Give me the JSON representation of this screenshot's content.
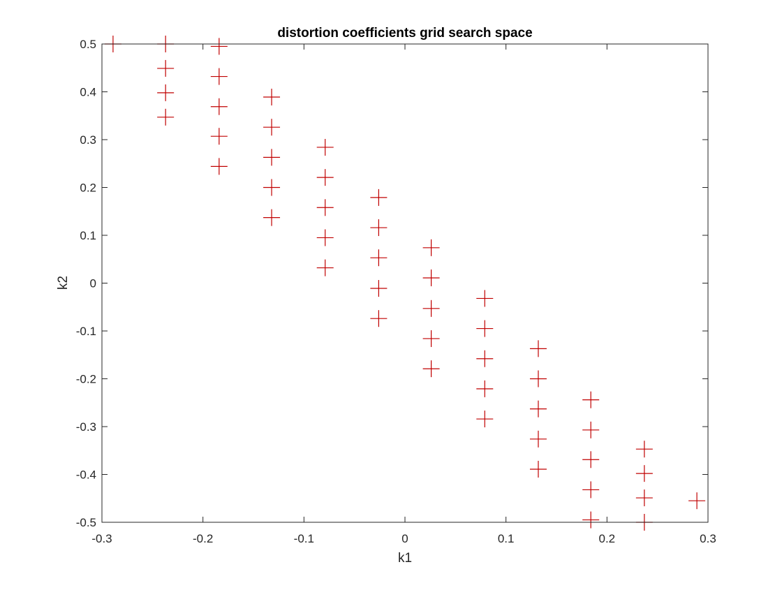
{
  "chart_data": {
    "type": "scatter",
    "title": "distortion coefficients grid search space",
    "xlabel": "k1",
    "ylabel": "k2",
    "xlim": [
      -0.3,
      0.3
    ],
    "ylim": [
      -0.5,
      0.5
    ],
    "xticks": [
      -0.3,
      -0.2,
      -0.1,
      0,
      0.1,
      0.2,
      0.3
    ],
    "xtick_labels": [
      "-0.3",
      "-0.2",
      "-0.1",
      "0",
      "0.1",
      "0.2",
      "0.3"
    ],
    "yticks": [
      -0.5,
      -0.4,
      -0.3,
      -0.2,
      -0.1,
      0,
      0.1,
      0.2,
      0.3,
      0.4,
      0.5
    ],
    "ytick_labels": [
      "-0.5",
      "-0.4",
      "-0.3",
      "-0.2",
      "-0.1",
      "0",
      "0.1",
      "0.2",
      "0.3",
      "0.4",
      "0.5"
    ],
    "grid": false,
    "marker": "plus",
    "marker_color": "#c00000",
    "axis_color": "#262626",
    "points": [
      {
        "x": -0.289,
        "y": 0.5
      },
      {
        "x": -0.237,
        "y": 0.5
      },
      {
        "x": -0.237,
        "y": 0.449
      },
      {
        "x": -0.237,
        "y": 0.398
      },
      {
        "x": -0.237,
        "y": 0.347
      },
      {
        "x": -0.184,
        "y": 0.495
      },
      {
        "x": -0.184,
        "y": 0.432
      },
      {
        "x": -0.184,
        "y": 0.369
      },
      {
        "x": -0.184,
        "y": 0.307
      },
      {
        "x": -0.184,
        "y": 0.244
      },
      {
        "x": -0.132,
        "y": 0.389
      },
      {
        "x": -0.132,
        "y": 0.326
      },
      {
        "x": -0.132,
        "y": 0.263
      },
      {
        "x": -0.132,
        "y": 0.2
      },
      {
        "x": -0.132,
        "y": 0.137
      },
      {
        "x": -0.079,
        "y": 0.284
      },
      {
        "x": -0.079,
        "y": 0.221
      },
      {
        "x": -0.079,
        "y": 0.158
      },
      {
        "x": -0.079,
        "y": 0.095
      },
      {
        "x": -0.079,
        "y": 0.032
      },
      {
        "x": -0.026,
        "y": 0.179
      },
      {
        "x": -0.026,
        "y": 0.116
      },
      {
        "x": -0.026,
        "y": 0.053
      },
      {
        "x": -0.026,
        "y": -0.011
      },
      {
        "x": -0.026,
        "y": -0.074
      },
      {
        "x": 0.026,
        "y": 0.074
      },
      {
        "x": 0.026,
        "y": 0.011
      },
      {
        "x": 0.026,
        "y": -0.053
      },
      {
        "x": 0.026,
        "y": -0.116
      },
      {
        "x": 0.026,
        "y": -0.179
      },
      {
        "x": 0.079,
        "y": -0.032
      },
      {
        "x": 0.079,
        "y": -0.095
      },
      {
        "x": 0.079,
        "y": -0.158
      },
      {
        "x": 0.079,
        "y": -0.221
      },
      {
        "x": 0.079,
        "y": -0.284
      },
      {
        "x": 0.132,
        "y": -0.137
      },
      {
        "x": 0.132,
        "y": -0.2
      },
      {
        "x": 0.132,
        "y": -0.263
      },
      {
        "x": 0.132,
        "y": -0.326
      },
      {
        "x": 0.132,
        "y": -0.389
      },
      {
        "x": 0.184,
        "y": -0.244
      },
      {
        "x": 0.184,
        "y": -0.307
      },
      {
        "x": 0.184,
        "y": -0.369
      },
      {
        "x": 0.184,
        "y": -0.432
      },
      {
        "x": 0.184,
        "y": -0.495
      },
      {
        "x": 0.237,
        "y": -0.347
      },
      {
        "x": 0.237,
        "y": -0.398
      },
      {
        "x": 0.237,
        "y": -0.449
      },
      {
        "x": 0.237,
        "y": -0.5
      },
      {
        "x": 0.289,
        "y": -0.455
      }
    ]
  }
}
